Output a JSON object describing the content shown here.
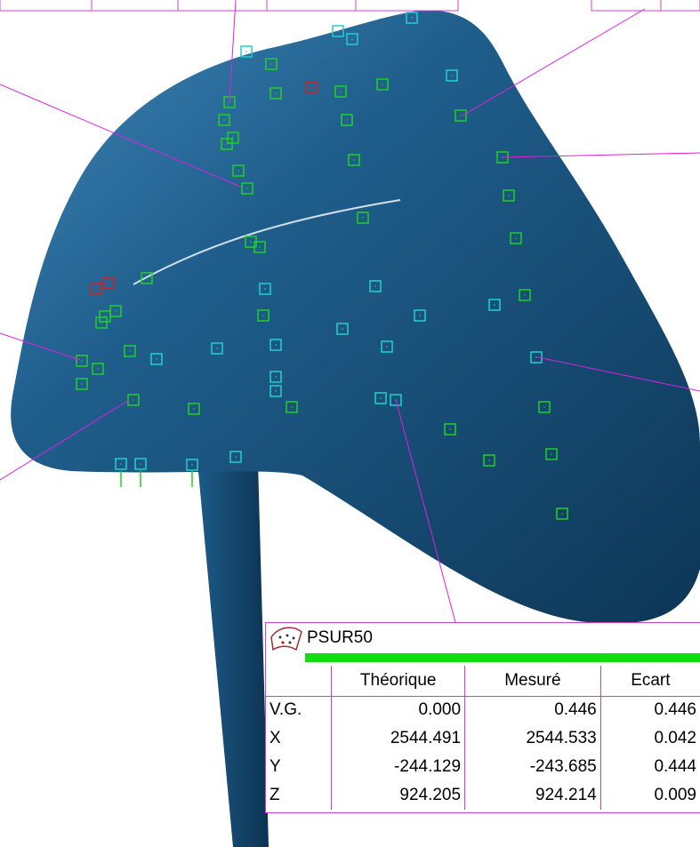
{
  "panel": {
    "title": "PSUR50",
    "columns": [
      "Théorique",
      "Mesuré",
      "Ecart"
    ],
    "rows": [
      {
        "label": "V.G.",
        "values": [
          "0.000",
          "0.446",
          "0.446"
        ]
      },
      {
        "label": "X",
        "values": [
          "2544.491",
          "2544.533",
          "0.042"
        ]
      },
      {
        "label": "Y",
        "values": [
          "-244.129",
          "-243.685",
          "0.444"
        ]
      },
      {
        "label": "Z",
        "values": [
          "924.205",
          "924.214",
          "0.009"
        ]
      }
    ]
  }
}
